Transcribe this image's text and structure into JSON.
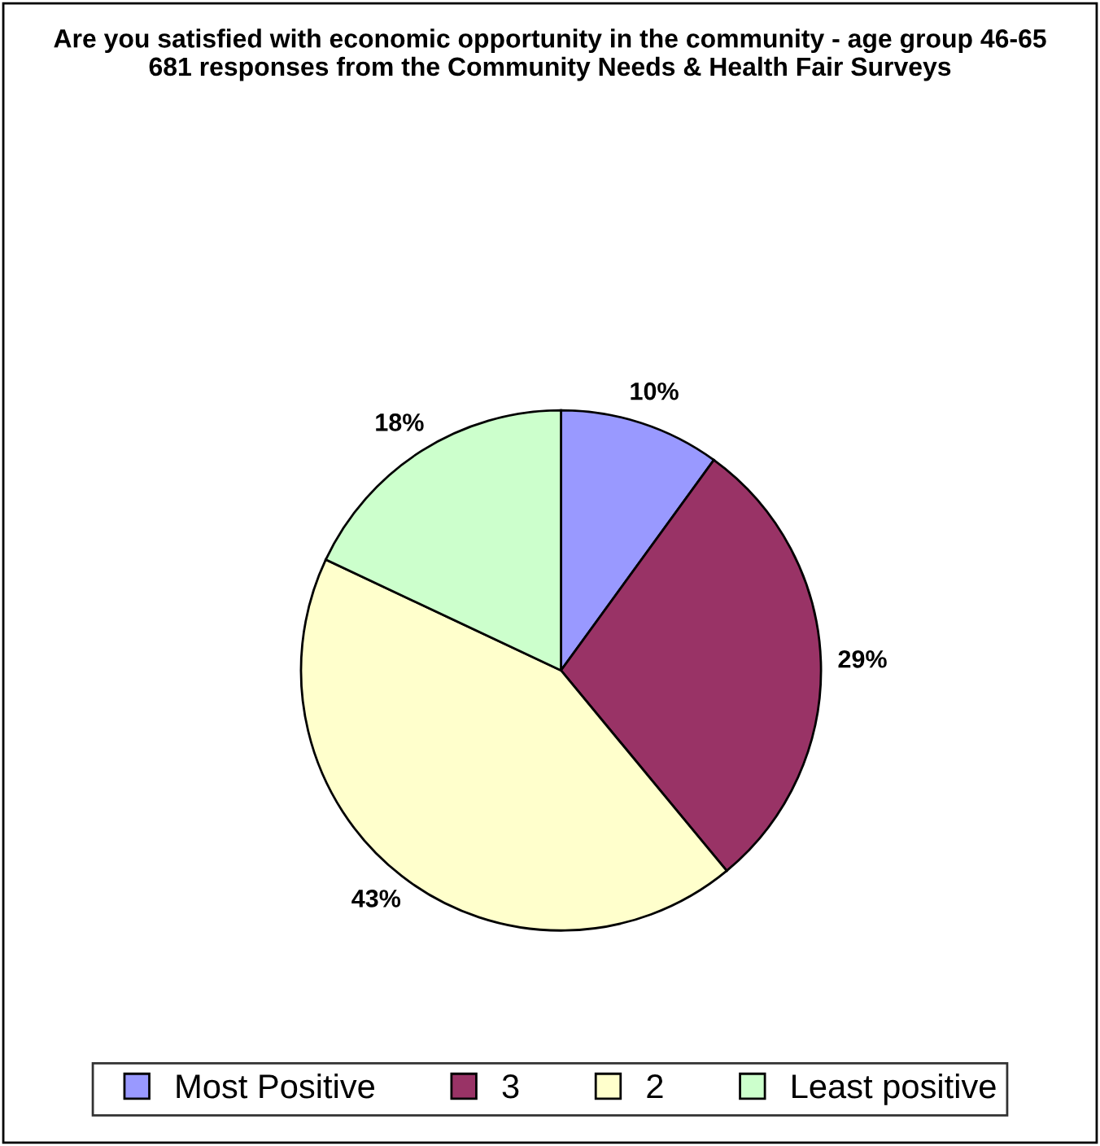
{
  "chart_data": {
    "type": "pie",
    "title": "Are you satisfied with economic opportunity in the community - age group 46-65\n681 responses from the Community Needs & Health Fair Surveys",
    "categories": [
      "Most Positive",
      "3",
      "2",
      "Least positive"
    ],
    "values": [
      10,
      29,
      43,
      18
    ],
    "colors": [
      "#9999ff",
      "#993366",
      "#ffffcc",
      "#ccffcc"
    ],
    "value_labels": [
      "10%",
      "29%",
      "43%",
      "18%"
    ],
    "legend": "bottom"
  }
}
